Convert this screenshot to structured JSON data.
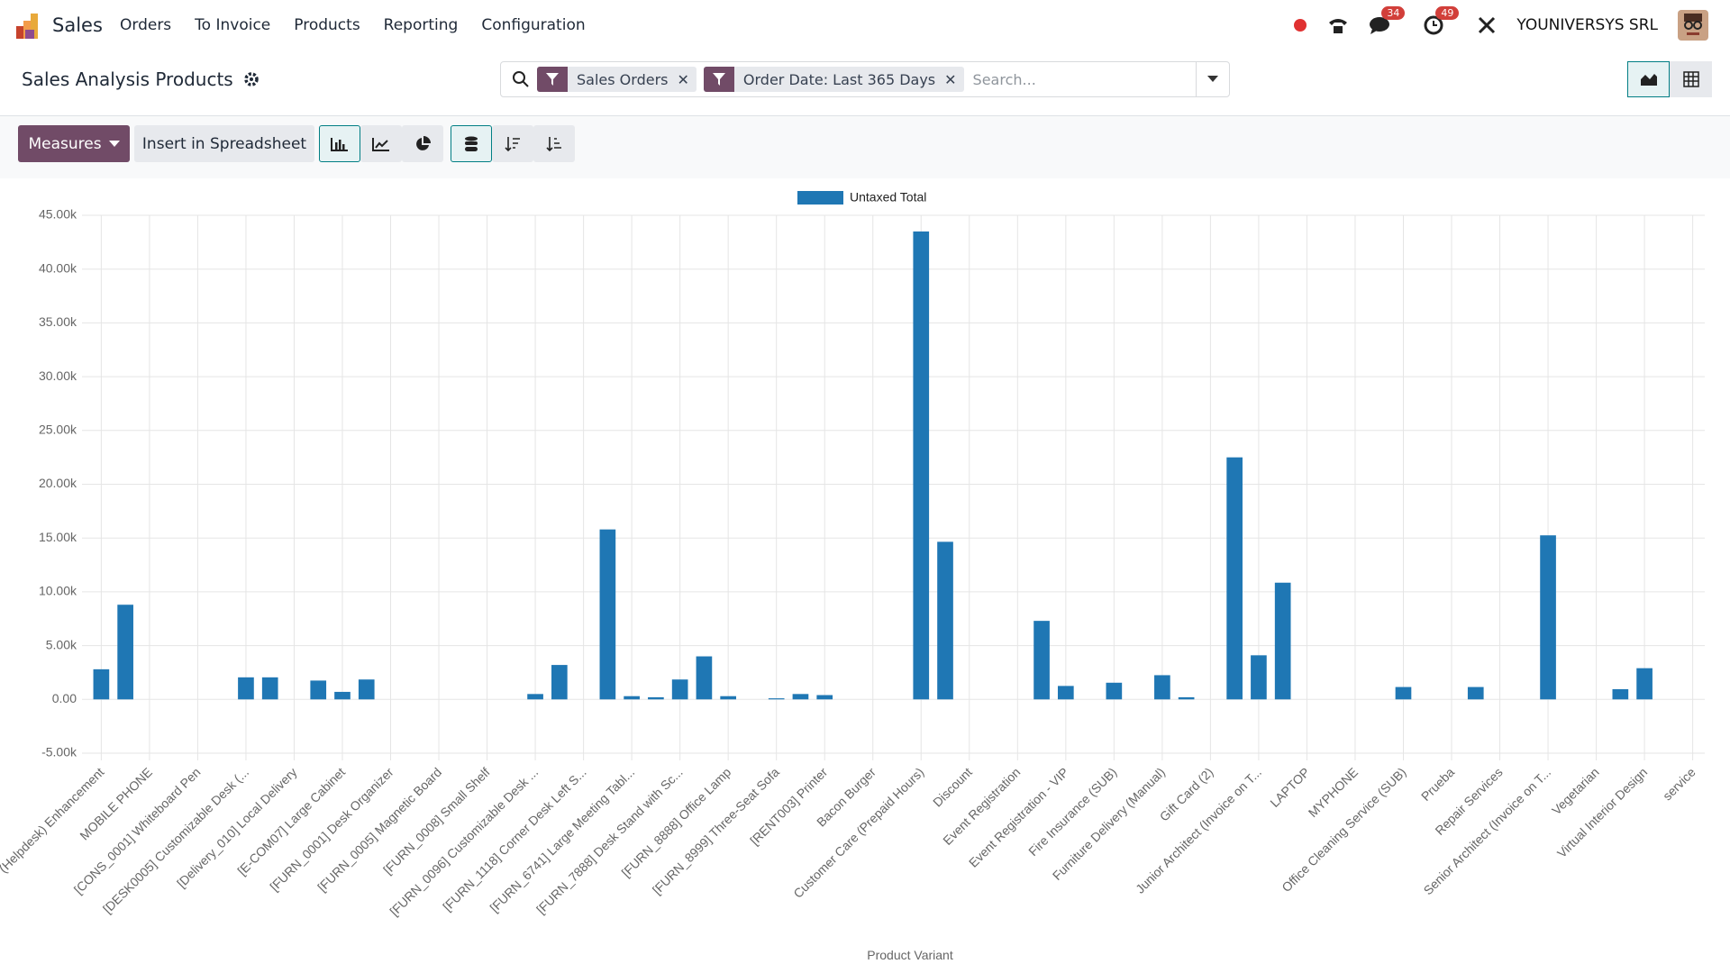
{
  "navbar": {
    "app": "Sales",
    "menu": [
      "Orders",
      "To Invoice",
      "Products",
      "Reporting",
      "Configuration"
    ],
    "messages_badge": 34,
    "activities_badge": 49,
    "company": "YOUNIVERSYS SRL"
  },
  "control_panel": {
    "title": "Sales Analysis Products",
    "facets": [
      "Sales Orders",
      "Order Date: Last 365 Days"
    ],
    "search_placeholder": "Search...",
    "measures_button": "Measures",
    "spreadsheet_button": "Insert in Spreadsheet"
  },
  "chart_data": {
    "type": "bar",
    "x_label": "Product Variant",
    "categories": [
      "(Helpdesk) Enhancement",
      null,
      "MOBILE PHONE",
      null,
      "[CONS_0001] Whiteboard Pen",
      null,
      "[DESK0005] Customizable Desk (...",
      null,
      "[Delivery_010] Local Delivery",
      null,
      "[E-COM07] Large Cabinet",
      null,
      "[FURN_0001] Desk Organizer",
      null,
      "[FURN_0005] Magnetic Board",
      null,
      "[FURN_0008] Small Shelf",
      null,
      "[FURN_0096] Customizable Desk ...",
      null,
      "[FURN_1118] Corner Desk Left S...",
      null,
      "[FURN_6741] Large Meeting Tabl...",
      null,
      "[FURN_7888] Desk Stand with Sc...",
      null,
      "[FURN_8888] Office Lamp",
      null,
      "[FURN_8999] Three-Seat Sofa",
      null,
      "[RENT003] Printer",
      null,
      "Bacon Burger",
      null,
      "Customer Care (Prepaid Hours)",
      null,
      "Discount",
      null,
      "Event Registration",
      null,
      "Event Registration - VIP",
      null,
      "Fire Insurance (SUB)",
      null,
      "Furniture Delivery (Manual)",
      null,
      "Gift Card (2)",
      null,
      "Junior Architect (Invoice on T...",
      null,
      "LAPTOP",
      null,
      "MYPHONE",
      null,
      "Office Cleaning Service (SUB)",
      null,
      "Prueba",
      null,
      "Repair Services",
      null,
      "Senior Architect (Invoice on T...",
      null,
      "Vegetarian",
      null,
      "Virtual Interior Design",
      null,
      "service"
    ],
    "series": [
      {
        "name": "Untaxed Total",
        "color": "#1f77b4",
        "values": [
          2800,
          8800,
          0,
          0,
          0,
          0,
          2050,
          2050,
          0,
          1750,
          700,
          1850,
          0,
          0,
          0,
          0,
          0,
          0,
          500,
          3200,
          0,
          15800,
          300,
          200,
          1850,
          4000,
          300,
          0,
          100,
          500,
          400,
          0,
          0,
          0,
          43500,
          14650,
          0,
          0,
          0,
          7300,
          1250,
          0,
          1550,
          0,
          2250,
          200,
          0,
          22500,
          4100,
          10850,
          0,
          0,
          0,
          0,
          1150,
          0,
          0,
          1150,
          0,
          0,
          15250,
          0,
          0,
          950,
          2900,
          0,
          0
        ]
      }
    ],
    "ylim": [
      -5000,
      45000
    ],
    "yticks": [
      {
        "value": -5000,
        "label": "-5.00k"
      },
      {
        "value": 0,
        "label": "0.00"
      },
      {
        "value": 5000,
        "label": "5.00k"
      },
      {
        "value": 10000,
        "label": "10.00k"
      },
      {
        "value": 15000,
        "label": "15.00k"
      },
      {
        "value": 20000,
        "label": "20.00k"
      },
      {
        "value": 25000,
        "label": "25.00k"
      },
      {
        "value": 30000,
        "label": "30.00k"
      },
      {
        "value": 35000,
        "label": "35.00k"
      },
      {
        "value": 40000,
        "label": "40.00k"
      },
      {
        "value": 45000,
        "label": "45.00k"
      }
    ],
    "grid": true,
    "legend": "top"
  }
}
